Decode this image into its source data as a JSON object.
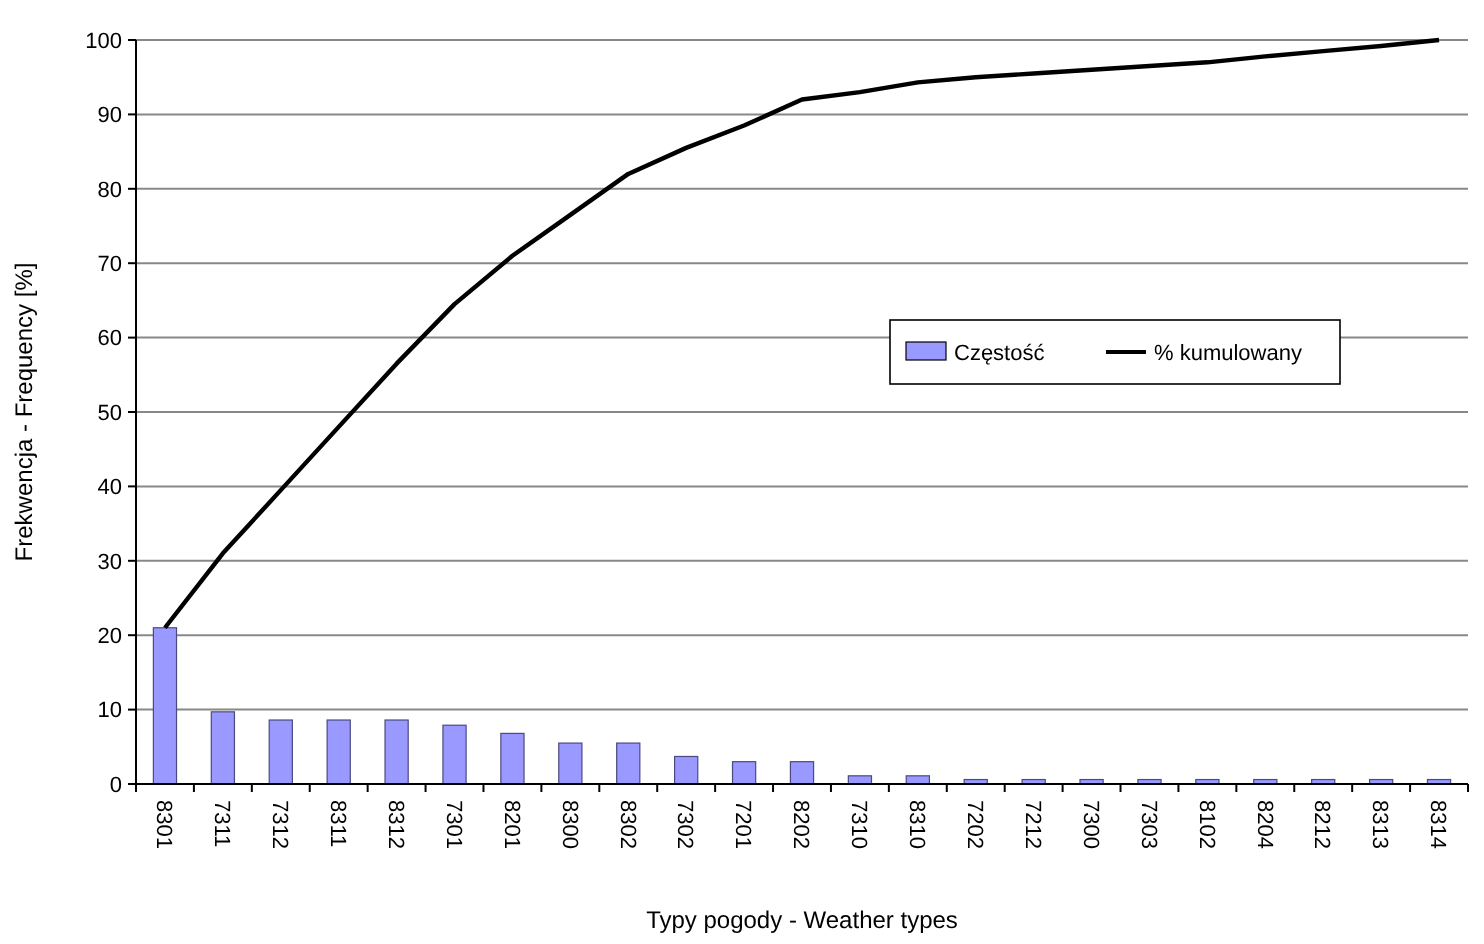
{
  "chart_data": {
    "type": "bar",
    "xlabel": "Typy pogody - Weather types",
    "ylabel": "Frekwencja - Frequency [%]",
    "categories": [
      "8301",
      "7311",
      "7312",
      "8311",
      "8312",
      "7301",
      "8201",
      "8300",
      "8302",
      "7302",
      "7201",
      "8202",
      "7310",
      "8310",
      "7202",
      "7212",
      "7300",
      "7303",
      "8102",
      "8204",
      "8212",
      "8313",
      "8314"
    ],
    "series": [
      {
        "name": "Częstość",
        "color": "#9999ff",
        "values": [
          21,
          9.7,
          8.6,
          8.6,
          8.6,
          7.9,
          6.8,
          5.5,
          5.5,
          3.7,
          3,
          3,
          1.1,
          1.1,
          0.6,
          0.6,
          0.6,
          0.6,
          0.6,
          0.6,
          0.6,
          0.6,
          0.6
        ]
      },
      {
        "name": "% kumulowany",
        "type": "line",
        "color": "#000000",
        "values": [
          21,
          31,
          39.5,
          48,
          56.5,
          64.5,
          71,
          76.5,
          82,
          85.5,
          88.5,
          92,
          93,
          94.3,
          95,
          95.5,
          96,
          96.5,
          97,
          97.8,
          98.5,
          99.2,
          100
        ]
      }
    ],
    "ylim": [
      0,
      100
    ],
    "yticks": [
      0,
      10,
      20,
      30,
      40,
      50,
      60,
      70,
      80,
      90,
      100
    ],
    "grid": "y",
    "legend": "right",
    "marker": "none",
    "line_style": "solid"
  }
}
